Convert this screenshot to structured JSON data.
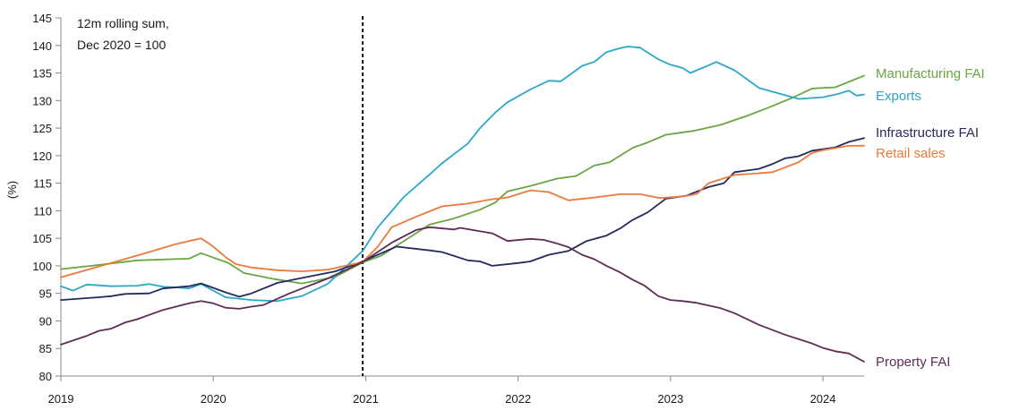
{
  "chart_data": {
    "type": "line",
    "annotation": [
      "12m rolling sum,",
      "Dec 2020 = 100"
    ],
    "ylabel": "(%)",
    "xlabel": "",
    "xlim": [
      2019,
      2024.27
    ],
    "ylim": [
      80,
      145
    ],
    "y_ticks": [
      80,
      85,
      90,
      95,
      100,
      105,
      110,
      115,
      120,
      125,
      130,
      135,
      140,
      145
    ],
    "x_ticks": [
      {
        "value": 2019,
        "label": "2019"
      },
      {
        "value": 2020,
        "label": "2020"
      },
      {
        "value": 2021,
        "label": "2021"
      },
      {
        "value": 2022,
        "label": "2022"
      },
      {
        "value": 2023,
        "label": "2023"
      },
      {
        "value": 2024,
        "label": "2024"
      }
    ],
    "reference_line": {
      "x": 2020.98,
      "style": "dashed"
    },
    "grid": false,
    "legend": "right end of lines",
    "series": [
      {
        "name": "Manufacturing FAI",
        "color": "#6aa641",
        "points": [
          [
            2019.0,
            99.4
          ],
          [
            2019.2,
            100.0
          ],
          [
            2019.5,
            101.0
          ],
          [
            2019.84,
            101.3
          ],
          [
            2019.92,
            102.3
          ],
          [
            2020.0,
            101.5
          ],
          [
            2020.1,
            100.5
          ],
          [
            2020.2,
            98.7
          ],
          [
            2020.4,
            97.6
          ],
          [
            2020.58,
            96.8
          ],
          [
            2020.8,
            98.0
          ],
          [
            2020.98,
            100.6
          ],
          [
            2021.1,
            101.8
          ],
          [
            2021.25,
            104.5
          ],
          [
            2021.42,
            107.5
          ],
          [
            2021.58,
            108.6
          ],
          [
            2021.75,
            110.2
          ],
          [
            2021.85,
            111.5
          ],
          [
            2021.93,
            113.5
          ],
          [
            2022.08,
            114.5
          ],
          [
            2022.25,
            115.8
          ],
          [
            2022.38,
            116.3
          ],
          [
            2022.5,
            118.2
          ],
          [
            2022.6,
            118.8
          ],
          [
            2022.75,
            121.4
          ],
          [
            2022.85,
            122.4
          ],
          [
            2022.97,
            123.8
          ],
          [
            2023.15,
            124.5
          ],
          [
            2023.33,
            125.6
          ],
          [
            2023.5,
            127.2
          ],
          [
            2023.65,
            128.8
          ],
          [
            2023.8,
            130.5
          ],
          [
            2023.93,
            132.2
          ],
          [
            2024.08,
            132.4
          ],
          [
            2024.27,
            134.5
          ]
        ]
      },
      {
        "name": "Exports",
        "color": "#29a8c9",
        "points": [
          [
            2019.0,
            96.3
          ],
          [
            2019.08,
            95.5
          ],
          [
            2019.17,
            96.6
          ],
          [
            2019.33,
            96.3
          ],
          [
            2019.5,
            96.4
          ],
          [
            2019.58,
            96.7
          ],
          [
            2019.67,
            96.2
          ],
          [
            2019.75,
            96.1
          ],
          [
            2019.84,
            95.9
          ],
          [
            2019.92,
            96.7
          ],
          [
            2020.08,
            94.3
          ],
          [
            2020.25,
            93.8
          ],
          [
            2020.42,
            93.6
          ],
          [
            2020.58,
            94.5
          ],
          [
            2020.75,
            96.7
          ],
          [
            2020.98,
            102.7
          ],
          [
            2021.08,
            107.0
          ],
          [
            2021.25,
            112.5
          ],
          [
            2021.42,
            116.6
          ],
          [
            2021.5,
            118.6
          ],
          [
            2021.67,
            122.2
          ],
          [
            2021.75,
            125.0
          ],
          [
            2021.85,
            127.8
          ],
          [
            2021.93,
            129.7
          ],
          [
            2022.08,
            132.0
          ],
          [
            2022.2,
            133.6
          ],
          [
            2022.28,
            133.5
          ],
          [
            2022.42,
            136.3
          ],
          [
            2022.5,
            137.0
          ],
          [
            2022.58,
            138.8
          ],
          [
            2022.67,
            139.5
          ],
          [
            2022.72,
            139.8
          ],
          [
            2022.8,
            139.6
          ],
          [
            2022.92,
            137.5
          ],
          [
            2023.0,
            136.5
          ],
          [
            2023.08,
            135.9
          ],
          [
            2023.13,
            135.0
          ],
          [
            2023.25,
            136.4
          ],
          [
            2023.3,
            137.0
          ],
          [
            2023.42,
            135.5
          ],
          [
            2023.58,
            132.3
          ],
          [
            2023.75,
            131.0
          ],
          [
            2023.84,
            130.3
          ],
          [
            2024.0,
            130.6
          ],
          [
            2024.1,
            131.2
          ],
          [
            2024.17,
            131.8
          ],
          [
            2024.22,
            130.9
          ],
          [
            2024.27,
            131.1
          ]
        ]
      },
      {
        "name": "Infrastructure FAI",
        "color": "#242a61",
        "points": [
          [
            2019.0,
            93.8
          ],
          [
            2019.25,
            94.3
          ],
          [
            2019.33,
            94.5
          ],
          [
            2019.42,
            94.9
          ],
          [
            2019.58,
            95.0
          ],
          [
            2019.67,
            95.9
          ],
          [
            2019.84,
            96.3
          ],
          [
            2019.92,
            96.8
          ],
          [
            2020.0,
            96.0
          ],
          [
            2020.08,
            95.2
          ],
          [
            2020.17,
            94.4
          ],
          [
            2020.25,
            95.0
          ],
          [
            2020.42,
            96.9
          ],
          [
            2020.58,
            97.8
          ],
          [
            2020.8,
            99.0
          ],
          [
            2020.98,
            100.8
          ],
          [
            2021.08,
            102.0
          ],
          [
            2021.2,
            103.5
          ],
          [
            2021.42,
            102.8
          ],
          [
            2021.5,
            102.5
          ],
          [
            2021.67,
            101.0
          ],
          [
            2021.75,
            100.8
          ],
          [
            2021.83,
            100.0
          ],
          [
            2022.0,
            100.5
          ],
          [
            2022.08,
            100.8
          ],
          [
            2022.2,
            102.0
          ],
          [
            2022.33,
            102.7
          ],
          [
            2022.45,
            104.5
          ],
          [
            2022.58,
            105.5
          ],
          [
            2022.67,
            106.8
          ],
          [
            2022.75,
            108.3
          ],
          [
            2022.85,
            109.7
          ],
          [
            2022.97,
            112.2
          ],
          [
            2023.1,
            112.7
          ],
          [
            2023.25,
            114.3
          ],
          [
            2023.35,
            115.0
          ],
          [
            2023.42,
            117.0
          ],
          [
            2023.58,
            117.6
          ],
          [
            2023.67,
            118.5
          ],
          [
            2023.75,
            119.5
          ],
          [
            2023.84,
            119.9
          ],
          [
            2023.93,
            120.9
          ],
          [
            2024.08,
            121.5
          ],
          [
            2024.17,
            122.5
          ],
          [
            2024.27,
            123.2
          ]
        ]
      },
      {
        "name": "Retail sales",
        "color": "#ec7a3a",
        "points": [
          [
            2019.0,
            97.9
          ],
          [
            2019.33,
            100.5
          ],
          [
            2019.58,
            102.5
          ],
          [
            2019.75,
            103.9
          ],
          [
            2019.84,
            104.5
          ],
          [
            2019.92,
            105.0
          ],
          [
            2020.0,
            103.5
          ],
          [
            2020.08,
            101.6
          ],
          [
            2020.15,
            100.3
          ],
          [
            2020.25,
            99.7
          ],
          [
            2020.42,
            99.2
          ],
          [
            2020.58,
            99.0
          ],
          [
            2020.75,
            99.3
          ],
          [
            2020.98,
            100.7
          ],
          [
            2021.08,
            103.5
          ],
          [
            2021.17,
            107.0
          ],
          [
            2021.33,
            108.9
          ],
          [
            2021.5,
            110.8
          ],
          [
            2021.67,
            111.3
          ],
          [
            2021.83,
            112.1
          ],
          [
            2021.93,
            112.4
          ],
          [
            2022.0,
            113.0
          ],
          [
            2022.08,
            113.7
          ],
          [
            2022.2,
            113.4
          ],
          [
            2022.33,
            111.9
          ],
          [
            2022.5,
            112.4
          ],
          [
            2022.67,
            113.0
          ],
          [
            2022.8,
            113.0
          ],
          [
            2022.93,
            112.3
          ],
          [
            2023.08,
            112.6
          ],
          [
            2023.17,
            113.0
          ],
          [
            2023.25,
            115.0
          ],
          [
            2023.42,
            116.5
          ],
          [
            2023.58,
            116.8
          ],
          [
            2023.67,
            117.0
          ],
          [
            2023.84,
            118.8
          ],
          [
            2023.93,
            120.5
          ],
          [
            2024.0,
            121.0
          ],
          [
            2024.17,
            121.8
          ],
          [
            2024.27,
            121.8
          ]
        ]
      },
      {
        "name": "Property FAI",
        "color": "#5e2c57",
        "points": [
          [
            2019.0,
            85.7
          ],
          [
            2019.17,
            87.3
          ],
          [
            2019.25,
            88.2
          ],
          [
            2019.33,
            88.6
          ],
          [
            2019.42,
            89.7
          ],
          [
            2019.5,
            90.3
          ],
          [
            2019.67,
            92.0
          ],
          [
            2019.84,
            93.2
          ],
          [
            2019.92,
            93.6
          ],
          [
            2020.0,
            93.2
          ],
          [
            2020.08,
            92.4
          ],
          [
            2020.17,
            92.2
          ],
          [
            2020.25,
            92.6
          ],
          [
            2020.33,
            92.9
          ],
          [
            2020.5,
            95.0
          ],
          [
            2020.75,
            97.7
          ],
          [
            2020.98,
            100.7
          ],
          [
            2021.17,
            104.2
          ],
          [
            2021.33,
            106.5
          ],
          [
            2021.42,
            107.0
          ],
          [
            2021.58,
            106.6
          ],
          [
            2021.62,
            106.9
          ],
          [
            2021.83,
            105.9
          ],
          [
            2021.93,
            104.5
          ],
          [
            2022.08,
            104.9
          ],
          [
            2022.17,
            104.7
          ],
          [
            2022.25,
            104.1
          ],
          [
            2022.33,
            103.4
          ],
          [
            2022.42,
            102.0
          ],
          [
            2022.5,
            101.2
          ],
          [
            2022.58,
            100.0
          ],
          [
            2022.67,
            98.8
          ],
          [
            2022.75,
            97.5
          ],
          [
            2022.83,
            96.4
          ],
          [
            2022.92,
            94.5
          ],
          [
            2023.0,
            93.8
          ],
          [
            2023.08,
            93.6
          ],
          [
            2023.17,
            93.3
          ],
          [
            2023.25,
            92.8
          ],
          [
            2023.33,
            92.3
          ],
          [
            2023.42,
            91.4
          ],
          [
            2023.58,
            89.3
          ],
          [
            2023.75,
            87.5
          ],
          [
            2023.92,
            86.0
          ],
          [
            2024.0,
            85.1
          ],
          [
            2024.08,
            84.5
          ],
          [
            2024.17,
            84.1
          ],
          [
            2024.27,
            82.6
          ]
        ]
      }
    ]
  }
}
